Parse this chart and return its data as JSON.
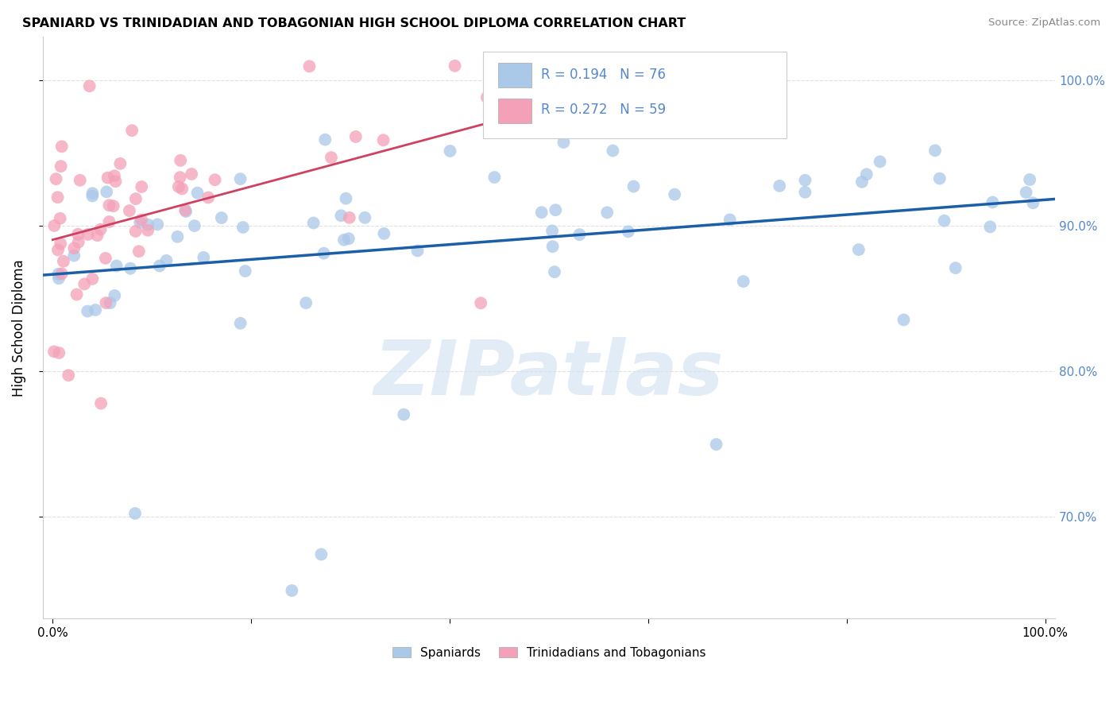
{
  "title": "SPANIARD VS TRINIDADIAN AND TOBAGONIAN HIGH SCHOOL DIPLOMA CORRELATION CHART",
  "source": "Source: ZipAtlas.com",
  "ylabel": "High School Diploma",
  "xlim_min": -1,
  "xlim_max": 101,
  "ylim_min": 63,
  "ylim_max": 103,
  "blue_R": 0.194,
  "blue_N": 76,
  "pink_R": 0.272,
  "pink_N": 59,
  "blue_color": "#aac8e8",
  "pink_color": "#f4a0b8",
  "blue_line_color": "#1a5fa8",
  "pink_line_color": "#d04060",
  "legend_label_blue": "Spaniards",
  "legend_label_pink": "Trinidadians and Tobagonians",
  "watermark": "ZIPatlas",
  "right_tick_color": "#5588cc",
  "grid_color": "#cccccc",
  "ytick_positions": [
    70,
    80,
    90,
    100
  ],
  "ytick_labels": [
    "70.0%",
    "80.0%",
    "90.0%",
    "100.0%"
  ]
}
